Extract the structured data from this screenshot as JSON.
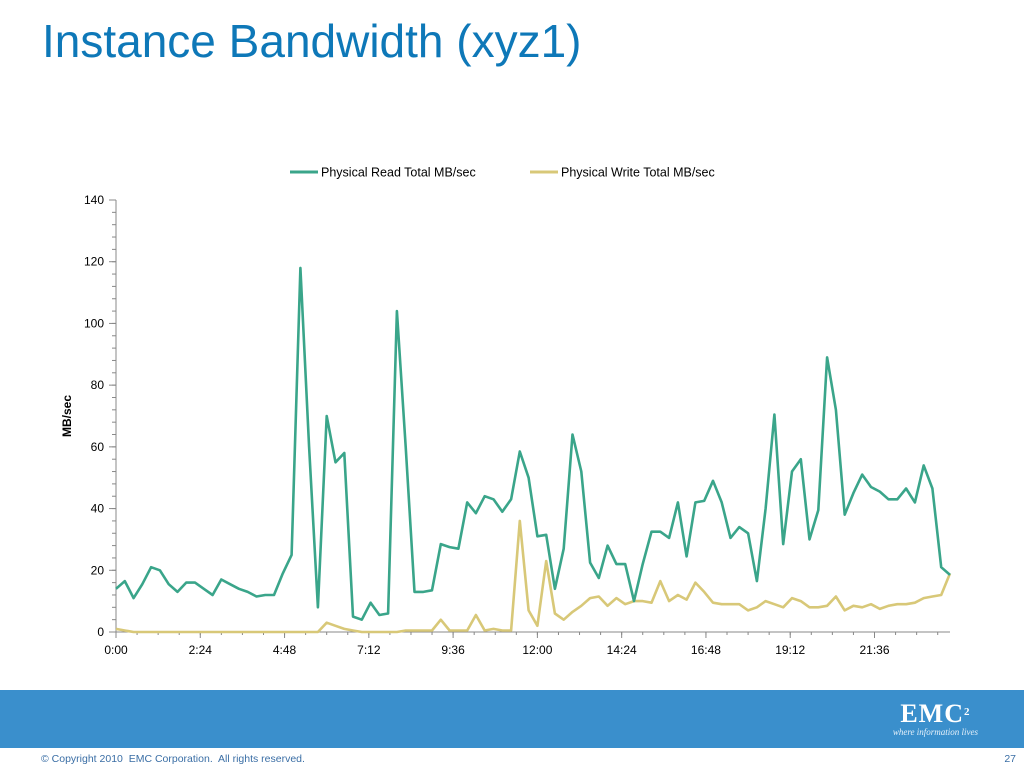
{
  "slide": {
    "title": "Instance Bandwidth (xyz1)",
    "copyright": "© Copyright 2010  EMC Corporation.  All rights reserved.",
    "page_number": "27",
    "logo_text": "EMC",
    "logo_superscript": "2",
    "logo_tagline": "where information lives",
    "footer_color": "#3a8fcc",
    "title_color": "#0e78b8"
  },
  "chart_data": {
    "type": "line",
    "title": "",
    "xlabel": "",
    "ylabel": "MB/sec",
    "ylim": [
      0,
      140
    ],
    "yticks": [
      0,
      20,
      40,
      60,
      80,
      100,
      120,
      140
    ],
    "xtick_labels": [
      "0:00",
      "2:24",
      "4:48",
      "7:12",
      "9:36",
      "12:00",
      "14:24",
      "16:48",
      "19:12",
      "21:36"
    ],
    "xtick_minutes": [
      0,
      144,
      288,
      432,
      576,
      720,
      864,
      1008,
      1152,
      1296
    ],
    "x_range_minutes": [
      0,
      1425
    ],
    "sample_interval_minutes": 15,
    "legend_position": "top",
    "grid": false,
    "series": [
      {
        "name": "Physical Read Total MB/sec",
        "color": "#3aa58a",
        "values": [
          14,
          16.5,
          11,
          15.5,
          21,
          20,
          15.5,
          13,
          16,
          16,
          14,
          12,
          17,
          15.5,
          14,
          13,
          11.5,
          12,
          12,
          19,
          25,
          118,
          60,
          8,
          70,
          55,
          58,
          5,
          4,
          9.5,
          5.5,
          6,
          104,
          60,
          13,
          13,
          13.5,
          28.5,
          27.5,
          27,
          42,
          38.5,
          44,
          43,
          39,
          43,
          58.5,
          50,
          31,
          31.5,
          14,
          27,
          64,
          52,
          22.5,
          17.5,
          28,
          22,
          22,
          10,
          22,
          32.5,
          32.5,
          30.5,
          42,
          24.5,
          42,
          42.5,
          49,
          42,
          30.5,
          34,
          32,
          16.5,
          40,
          70.5,
          28.5,
          52,
          56,
          30,
          39.5,
          89,
          72,
          38,
          45,
          51,
          47,
          45.5,
          43,
          43,
          46.5,
          42,
          54,
          46.5,
          21,
          18.5
        ]
      },
      {
        "name": "Physical Write Total MB/sec",
        "color": "#d8c878",
        "values": [
          1,
          0.5,
          0,
          0,
          0,
          0,
          0,
          0,
          0,
          0,
          0,
          0,
          0,
          0,
          0,
          0,
          0,
          0,
          0,
          0,
          0,
          0,
          0,
          0,
          3,
          2,
          1,
          0.5,
          0,
          0,
          0,
          0,
          0,
          0.5,
          0.5,
          0.5,
          0.5,
          4,
          0.5,
          0.5,
          0.5,
          5.5,
          0.5,
          1,
          0.5,
          0.5,
          36,
          7,
          2,
          23,
          6,
          4,
          6.5,
          8.5,
          11,
          11.5,
          8.5,
          11,
          9,
          10,
          10,
          9.5,
          16.5,
          10,
          12,
          10.5,
          16,
          13,
          9.5,
          9,
          9,
          9,
          7,
          8,
          10,
          9,
          8,
          11,
          10,
          8,
          8,
          8.5,
          11.5,
          7,
          8.5,
          8,
          9,
          7.5,
          8.5,
          9,
          9,
          9.5,
          11,
          11.5,
          12,
          19
        ]
      }
    ]
  }
}
